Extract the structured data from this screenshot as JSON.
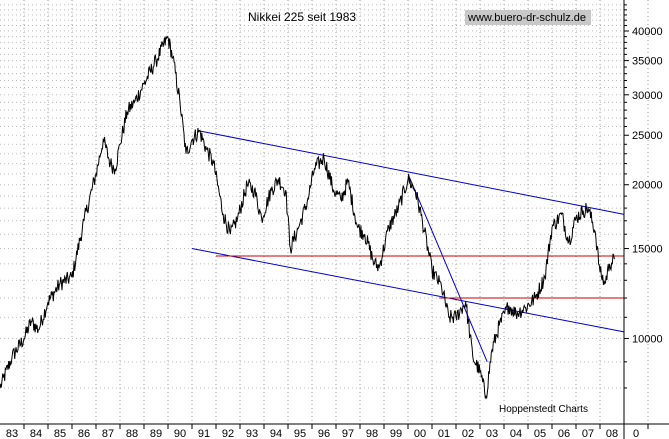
{
  "header": {
    "title": "Nikkei 225 seit 1983",
    "site": "www.buero-dr-schulz.de"
  },
  "footer": {
    "source": "Hoppenstedt Charts"
  },
  "chart_data": {
    "type": "line",
    "title": "Nikkei 225 seit 1983",
    "xlabel": "",
    "ylabel": "",
    "y_scale": "log",
    "ylim": [
      6800,
      46000
    ],
    "xlim": [
      1983.0,
      2009.0
    ],
    "grid": true,
    "x_tick_labels": [
      "83",
      "84",
      "85",
      "86",
      "87",
      "88",
      "89",
      "90",
      "91",
      "92",
      "93",
      "94",
      "95",
      "96",
      "97",
      "98",
      "99",
      "00",
      "01",
      "02",
      "03",
      "04",
      "05",
      "06",
      "07",
      "08",
      "0"
    ],
    "y_tick_labels": [
      {
        "value": 40000,
        "label": "40000"
      },
      {
        "value": 35000,
        "label": "35000"
      },
      {
        "value": 30000,
        "label": "30000"
      },
      {
        "value": 25000,
        "label": "25000"
      },
      {
        "value": 20000,
        "label": "20000"
      },
      {
        "value": 15000,
        "label": "15000"
      },
      {
        "value": 10000,
        "label": "10000"
      }
    ],
    "series": [
      {
        "x": [
          1983.0,
          1983.5,
          1984.0,
          1984.3,
          1984.6,
          1985.0,
          1985.5,
          1986.0,
          1986.5,
          1987.0,
          1987.3,
          1987.6,
          1987.8,
          1988.0,
          1988.3,
          1988.6,
          1989.0,
          1989.5,
          1989.99,
          1990.2,
          1990.5,
          1990.75,
          1991.0,
          1991.3,
          1991.6,
          1991.9,
          1992.3,
          1992.6,
          1992.9,
          1993.3,
          1993.6,
          1993.9,
          1994.3,
          1994.6,
          1994.9,
          1995.1,
          1995.5,
          1995.8,
          1996.1,
          1996.5,
          1996.9,
          1997.2,
          1997.5,
          1997.9,
          1998.2,
          1998.6,
          1998.8,
          1999.2,
          1999.6,
          2000.0,
          2000.3,
          2000.6,
          2001.0,
          2001.4,
          2001.7,
          2002.0,
          2002.4,
          2002.7,
          2003.0,
          2003.25,
          2003.5,
          2003.8,
          2004.2,
          2004.5,
          2004.9,
          2005.3,
          2005.7,
          2006.0,
          2006.4,
          2006.7,
          2007.0,
          2007.3,
          2007.5,
          2007.8,
          2008.0,
          2008.2,
          2008.4,
          2008.6
        ],
        "values": [
          8000,
          9200,
          10000,
          10800,
          10400,
          11800,
          12800,
          13200,
          17000,
          21000,
          24500,
          22000,
          21500,
          24000,
          27800,
          29000,
          31500,
          35000,
          38900,
          35500,
          29000,
          23000,
          24500,
          25500,
          23500,
          22000,
          17500,
          16000,
          17200,
          20000,
          19500,
          17200,
          19500,
          20500,
          19500,
          15000,
          16800,
          18500,
          21500,
          22600,
          19500,
          18700,
          20300,
          16500,
          16000,
          14000,
          13800,
          16500,
          18000,
          20500,
          19500,
          17000,
          13600,
          12600,
          11000,
          11000,
          11800,
          9200,
          8600,
          7700,
          9500,
          10600,
          11600,
          11200,
          11500,
          12000,
          13200,
          16500,
          17500,
          15500,
          17200,
          17800,
          18000,
          16200,
          13500,
          12800,
          14000,
          14300
        ]
      }
    ],
    "annotations": [
      {
        "type": "trendline",
        "color": "#0000cc",
        "from": {
          "x": 1991.3,
          "y": 25500
        },
        "to": {
          "x": 2009.0,
          "y": 17500
        }
      },
      {
        "type": "trendline",
        "color": "#0000cc",
        "from": {
          "x": 1991.0,
          "y": 15000
        },
        "to": {
          "x": 2009.0,
          "y": 10300
        }
      },
      {
        "type": "trendline",
        "color": "#0000cc",
        "from": {
          "x": 2000.0,
          "y": 21000
        },
        "to": {
          "x": 2003.3,
          "y": 9000
        }
      },
      {
        "type": "hline",
        "color": "#cc0000",
        "y": 14500,
        "from_x": 1992.0,
        "to_x": 2009.0
      },
      {
        "type": "hline",
        "color": "#cc0000",
        "y": 12000,
        "from_x": 2001.3,
        "to_x": 2009.0
      }
    ]
  }
}
